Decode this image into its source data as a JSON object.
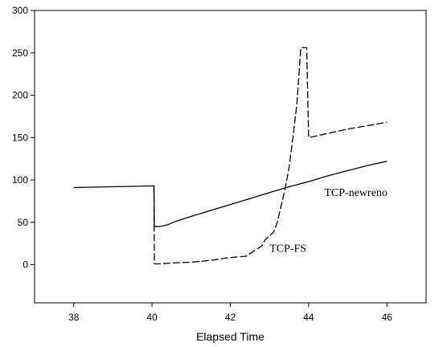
{
  "chart_data": {
    "type": "line",
    "title": "",
    "xlabel": "Elapsed Time",
    "ylabel": "",
    "xlim": [
      37,
      47
    ],
    "ylim": [
      -45,
      300
    ],
    "xticks": [
      38,
      40,
      42,
      44,
      46
    ],
    "yticks": [
      0,
      50,
      100,
      150,
      200,
      250,
      300
    ],
    "grid": false,
    "legend": "none",
    "series": [
      {
        "name": "TCP-newreno",
        "style": "solid",
        "color": "#000000",
        "points": [
          [
            38.0,
            91
          ],
          [
            40.05,
            93
          ],
          [
            40.06,
            45
          ],
          [
            40.2,
            45
          ],
          [
            40.4,
            47
          ],
          [
            40.6,
            51
          ],
          [
            41.0,
            57
          ],
          [
            41.5,
            64
          ],
          [
            42.0,
            71
          ],
          [
            42.5,
            78
          ],
          [
            43.0,
            85
          ],
          [
            43.5,
            92
          ],
          [
            44.0,
            98
          ],
          [
            44.5,
            105
          ],
          [
            45.0,
            111
          ],
          [
            45.5,
            117
          ],
          [
            46.0,
            122
          ]
        ]
      },
      {
        "name": "TCP-FS",
        "style": "dashed",
        "color": "#000000",
        "points": [
          [
            40.05,
            93
          ],
          [
            40.06,
            1
          ],
          [
            40.2,
            1
          ],
          [
            40.5,
            2
          ],
          [
            41.0,
            3
          ],
          [
            41.5,
            5
          ],
          [
            41.9,
            8
          ],
          [
            42.4,
            10
          ],
          [
            42.6,
            16
          ],
          [
            42.8,
            22
          ],
          [
            42.9,
            30
          ],
          [
            43.1,
            38
          ],
          [
            43.2,
            50
          ],
          [
            43.3,
            70
          ],
          [
            43.4,
            90
          ],
          [
            43.5,
            115
          ],
          [
            43.6,
            150
          ],
          [
            43.7,
            190
          ],
          [
            43.8,
            256
          ],
          [
            43.95,
            256
          ],
          [
            44.0,
            150
          ],
          [
            44.5,
            155
          ],
          [
            45.0,
            160
          ],
          [
            45.5,
            164
          ],
          [
            46.0,
            168
          ]
        ]
      }
    ],
    "annotations": [
      {
        "text": "TCP-newreno",
        "x": 44.4,
        "y": 81
      },
      {
        "text": "TCP-FS",
        "x": 43.0,
        "y": 15
      }
    ]
  }
}
